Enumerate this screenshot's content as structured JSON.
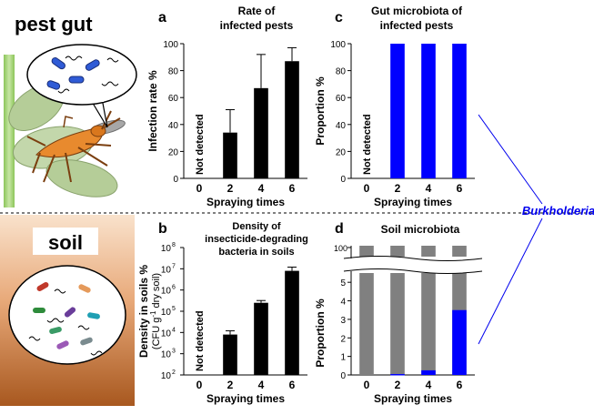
{
  "left_panel": {
    "top_label": "pest gut",
    "bottom_label": "soil"
  },
  "annotation": {
    "text": "Burkholderia",
    "color": "#0000ee"
  },
  "colors": {
    "bar_black": "#000000",
    "bar_blue": "#0000ff",
    "bar_gray": "#808080",
    "soil_top": "#f7dcc4",
    "soil_bottom": "#a8581f",
    "bug": "#e88a2e",
    "leaf": "#b9cfa0",
    "stem": "#9ccf6a"
  },
  "panels": {
    "a": {
      "letter": "a",
      "title_line1": "Rate of",
      "title_line2": "infected pests"
    },
    "b": {
      "letter": "b",
      "title_line1": "Density of",
      "title_line2": "insecticide-degrading",
      "title_line3": "bacteria in soils"
    },
    "c": {
      "letter": "c",
      "title_line1": "Gut microbiota of",
      "title_line2": "infected pests"
    },
    "d": {
      "letter": "d",
      "title_line1": "Soil microbiota"
    }
  },
  "chart_data": [
    {
      "id": "a",
      "type": "bar",
      "title": "Rate of infected pests",
      "xlabel": "Spraying times",
      "ylabel": "Infection rate %",
      "categories": [
        "0",
        "2",
        "4",
        "6"
      ],
      "values": [
        0,
        34,
        67,
        87
      ],
      "errors": [
        0,
        17,
        25,
        10
      ],
      "ylim": [
        0,
        100
      ],
      "yticks": [
        "0",
        "20",
        "40",
        "60",
        "80",
        "100"
      ],
      "annotations": [
        {
          "category": "0",
          "text": "Not detected"
        }
      ]
    },
    {
      "id": "c",
      "type": "bar",
      "title": "Gut microbiota of infected pests",
      "xlabel": "Spraying times",
      "ylabel": "Proportion %",
      "categories": [
        "0",
        "2",
        "4",
        "6"
      ],
      "values": [
        0,
        100,
        100,
        100
      ],
      "ylim": [
        0,
        100
      ],
      "yticks": [
        "0",
        "20",
        "40",
        "60",
        "80",
        "100"
      ],
      "annotations": [
        {
          "category": "0",
          "text": "Not detected"
        }
      ]
    },
    {
      "id": "b",
      "type": "bar",
      "title": "Density of insecticide-degrading bacteria in soils",
      "xlabel": "Spraying times",
      "ylabel": "Density in soils %",
      "ylabel2": "(CFU g",
      "ylabel2_sup": "-1",
      "ylabel2_tail": " dry soil)",
      "yscale": "log",
      "categories": [
        "0",
        "2",
        "4",
        "6"
      ],
      "values": [
        0,
        8000,
        250000,
        8000000
      ],
      "error_high": [
        0,
        12000,
        320000,
        12000000
      ],
      "ylim": [
        100,
        100000000
      ],
      "ytick_exponents": [
        2,
        3,
        4,
        5,
        6,
        7,
        8
      ],
      "ytick_base": "10",
      "annotations": [
        {
          "category": "0",
          "text": "Not detected"
        }
      ]
    },
    {
      "id": "d",
      "type": "bar",
      "stacked": true,
      "title": "Soil microbiota",
      "xlabel": "Spraying times",
      "ylabel": "Proportion %",
      "categories": [
        "0",
        "2",
        "4",
        "6"
      ],
      "series": [
        {
          "values": [
            0,
            0.05,
            0.25,
            3.5
          ],
          "color": "#0000ff"
        },
        {
          "values": [
            100,
            99.95,
            99.75,
            96.5
          ],
          "color": "#808080"
        }
      ],
      "ylim_lower": [
        0,
        5.5
      ],
      "yticks_lower": [
        "0",
        "1",
        "2",
        "3",
        "4",
        "5"
      ],
      "ytick_upper": "100",
      "axis_break": true
    }
  ]
}
